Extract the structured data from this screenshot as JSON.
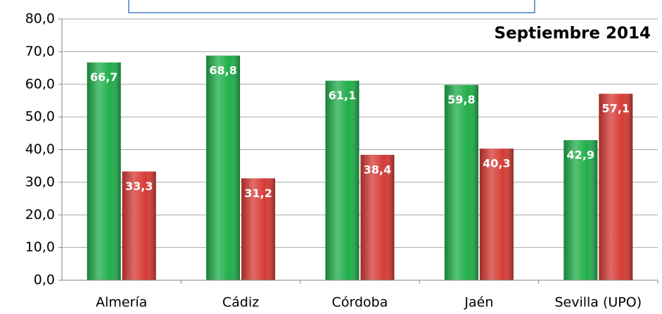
{
  "chart_data": {
    "type": "bar",
    "annotation": "Septiembre 2014",
    "categories": [
      "Almería",
      "Cádiz",
      "Córdoba",
      "Jaén",
      "Sevilla (UPO)"
    ],
    "series": [
      {
        "color": "#1fae4a",
        "values": [
          66.7,
          68.8,
          61.1,
          59.8,
          42.9
        ],
        "value_labels": [
          "66,7",
          "68,8",
          "61,1",
          "59,8",
          "42,9"
        ]
      },
      {
        "color": "#d63a34",
        "values": [
          33.3,
          31.2,
          38.4,
          40.3,
          57.1
        ],
        "value_labels": [
          "33,3",
          "31,2",
          "38,4",
          "40,3",
          "57,1"
        ]
      }
    ],
    "ylim": [
      0,
      80
    ],
    "yticks": [
      {
        "value": 0,
        "label": "0,0"
      },
      {
        "value": 10,
        "label": "10,0"
      },
      {
        "value": 20,
        "label": "20,0"
      },
      {
        "value": 30,
        "label": "30,0"
      },
      {
        "value": 40,
        "label": "40,0"
      },
      {
        "value": 50,
        "label": "50,0"
      },
      {
        "value": 60,
        "label": "60,0"
      },
      {
        "value": 70,
        "label": "70,0"
      },
      {
        "value": 80,
        "label": "80,0"
      }
    ],
    "grid": true
  }
}
